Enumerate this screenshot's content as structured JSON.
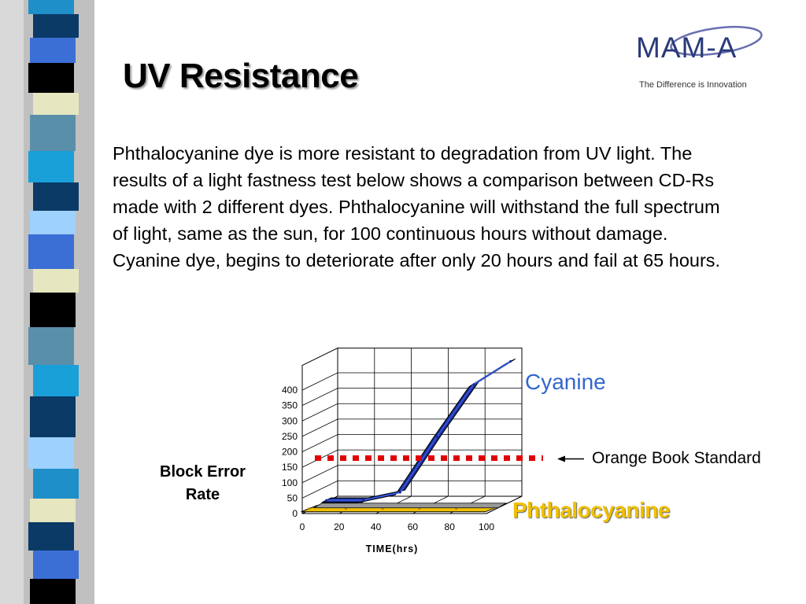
{
  "slide": {
    "title": "UV Resistance",
    "logo_text": "MAM-A",
    "logo_tagline": "The Difference is Innovation",
    "body_text": "Phthalocyanine dye is more resistant to degradation from UV light.  The results of a light fastness test below shows  a comparison between CD-Rs made with 2 different dyes. Phthalocyanine will withstand the full spectrum of light, same as the sun, for 100 continuous hours without damage.  Cyanine dye, begins to deteriorate after only 20 hours and fail at 65 hours."
  },
  "chart_data": {
    "type": "line",
    "xlabel": "TIME(hrs)",
    "ylabel": "Block Error Rate",
    "x": [
      0,
      20,
      40,
      60,
      80,
      100
    ],
    "xlim": [
      0,
      100
    ],
    "ylim": [
      0,
      400
    ],
    "yticks": [
      0,
      50,
      100,
      150,
      200,
      250,
      300,
      350,
      400
    ],
    "xticks": [
      0,
      20,
      40,
      60,
      80,
      100
    ],
    "series": [
      {
        "name": "Cyanine",
        "x": [
          0,
          20,
          40,
          60,
          80,
          100
        ],
        "values": [
          5,
          5,
          30,
          210,
          380,
          455
        ],
        "color": "#1a2a8a"
      },
      {
        "name": "Phthalocyanine",
        "x": [
          0,
          20,
          40,
          60,
          80,
          100
        ],
        "values": [
          0,
          0,
          0,
          0,
          0,
          0
        ],
        "color": "#f0c000"
      }
    ],
    "threshold": {
      "name": "Orange Book Standard",
      "value": 160,
      "color": "#e00000"
    },
    "grid": true,
    "legend": "inline-labels"
  }
}
